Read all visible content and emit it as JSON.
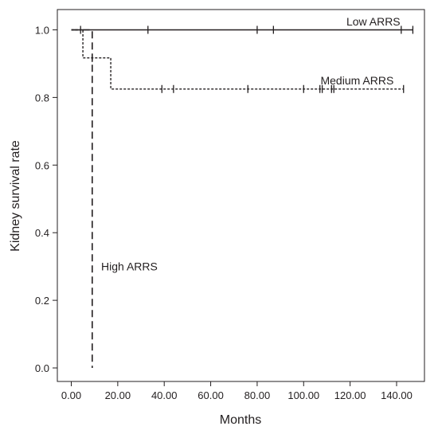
{
  "chart_data": {
    "type": "line",
    "subtype": "kaplan-meier step",
    "title": "",
    "xlabel": "Months",
    "ylabel": "Kidney survival rate",
    "xlim": [
      -6,
      152
    ],
    "ylim": [
      -0.04,
      1.06
    ],
    "x_ticks": [
      0,
      20,
      40,
      60,
      80,
      100,
      120,
      140
    ],
    "x_tick_labels": [
      "0.00",
      "20.00",
      "40.00",
      "60.00",
      "80.00",
      "100.00",
      "120.00",
      "140.00"
    ],
    "y_ticks": [
      0.0,
      0.2,
      0.4,
      0.6,
      0.8,
      1.0
    ],
    "y_tick_labels": [
      "0.0",
      "0.2",
      "0.4",
      "0.6",
      "0.8",
      "1.0"
    ],
    "grid": false,
    "legend": "none",
    "series": [
      {
        "name": "Low ARRS",
        "line_style": "solid",
        "steps": [
          [
            0,
            1.0
          ],
          [
            147,
            1.0
          ]
        ],
        "censored_x": [
          4,
          33,
          80,
          87,
          142,
          147
        ],
        "label_x": 130,
        "label_y": 1.025
      },
      {
        "name": "Medium ARRS",
        "line_style": "dotted",
        "steps": [
          [
            0,
            1.0
          ],
          [
            5,
            1.0
          ],
          [
            5,
            0.917
          ],
          [
            17,
            0.917
          ],
          [
            17,
            0.825
          ],
          [
            143,
            0.825
          ]
        ],
        "censored_x": [
          9,
          39,
          44,
          76,
          100,
          107,
          108,
          112,
          113,
          143
        ],
        "label_x": 123,
        "label_y": 0.85
      },
      {
        "name": "High ARRS",
        "line_style": "dashed",
        "steps": [
          [
            0,
            1.0
          ],
          [
            9,
            1.0
          ],
          [
            9,
            0.0
          ]
        ],
        "censored_x": [
          9
        ],
        "censored_y": [
          0.917
        ],
        "label_x": 25,
        "label_y": 0.3
      }
    ]
  }
}
